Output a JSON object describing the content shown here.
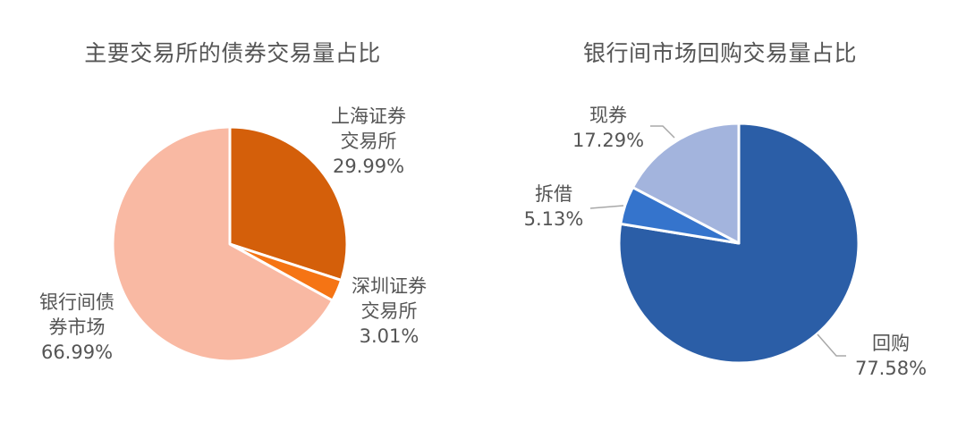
{
  "chart_data": [
    {
      "type": "pie",
      "title": "主要交易所的债券交易量占比",
      "categories": [
        "上海证券交易所",
        "深圳证券交易所",
        "银行间债券市场"
      ],
      "values": [
        29.99,
        3.01,
        66.99
      ],
      "unit": "%",
      "colors": [
        "#D45F0A",
        "#F57414",
        "#F9B9A3"
      ],
      "start_angle": 0,
      "direction": "clockwise",
      "legend": "none",
      "labels": [
        {
          "lines": [
            "上海证券",
            "交易所",
            "29.99%"
          ]
        },
        {
          "lines": [
            "深圳证券",
            "交易所",
            "3.01%"
          ]
        },
        {
          "lines": [
            "银行间债",
            "券市场",
            "66.99%"
          ]
        }
      ]
    },
    {
      "type": "pie",
      "title": "银行间市场回购交易量占比",
      "categories": [
        "回购",
        "拆借",
        "现券"
      ],
      "values": [
        77.58,
        5.13,
        17.29
      ],
      "unit": "%",
      "colors": [
        "#2B5EA7",
        "#3574CC",
        "#A3B4DD"
      ],
      "start_angle": 0,
      "direction": "clockwise",
      "legend": "none",
      "labels": [
        {
          "lines": [
            "回购",
            "77.58%"
          ]
        },
        {
          "lines": [
            "拆借",
            "5.13%"
          ]
        },
        {
          "lines": [
            "现券",
            "17.29%"
          ]
        }
      ]
    }
  ]
}
